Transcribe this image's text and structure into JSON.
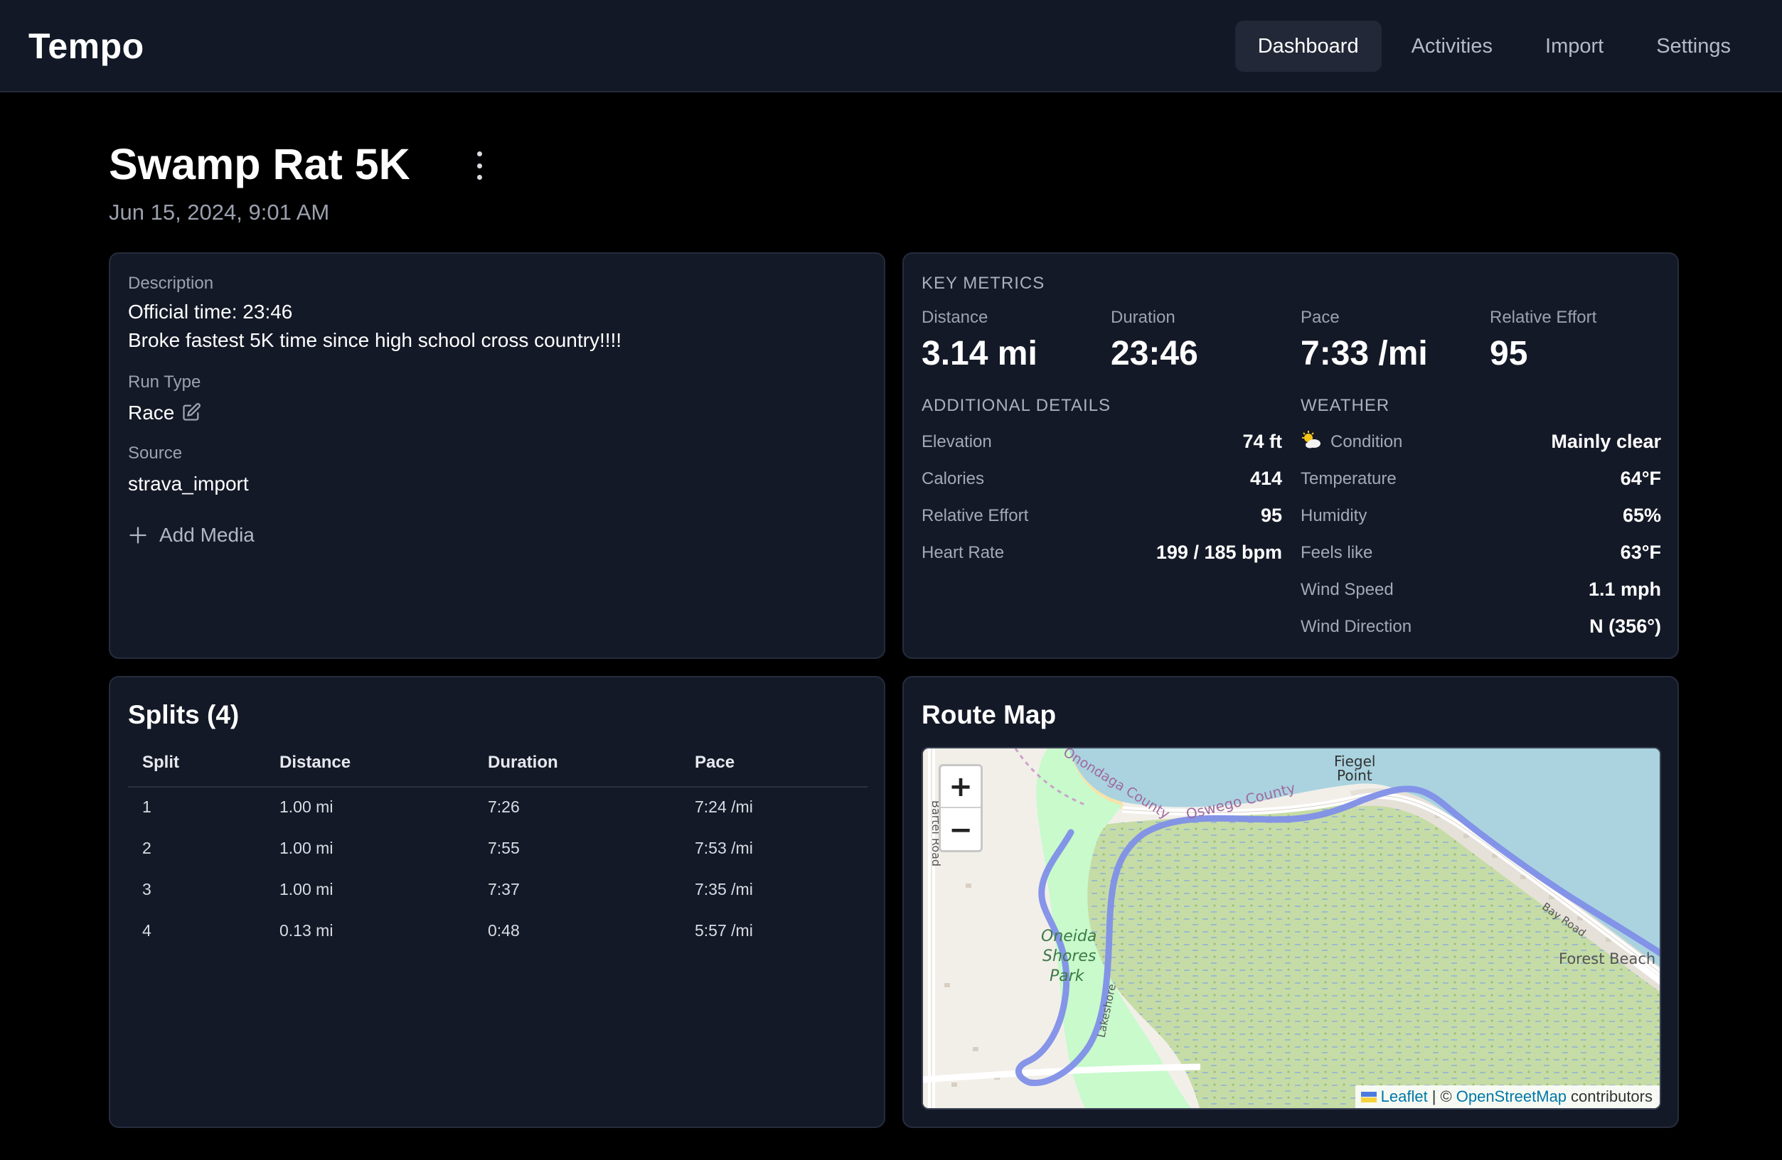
{
  "app": {
    "name": "Tempo"
  },
  "nav": {
    "items": [
      "Dashboard",
      "Activities",
      "Import",
      "Settings"
    ],
    "active": "Dashboard"
  },
  "activity": {
    "title": "Swamp Rat 5K",
    "datetime": "Jun 15, 2024, 9:01 AM"
  },
  "details": {
    "description_label": "Description",
    "description_lines": [
      "Official time: 23:46",
      "Broke fastest 5K time since high school cross country!!!!"
    ],
    "run_type_label": "Run Type",
    "run_type": "Race",
    "source_label": "Source",
    "source": "strava_import",
    "add_media_label": "Add Media"
  },
  "key_metrics": {
    "heading": "KEY METRICS",
    "items": [
      {
        "label": "Distance",
        "value": "3.14 mi"
      },
      {
        "label": "Duration",
        "value": "23:46"
      },
      {
        "label": "Pace",
        "value": "7:33 /mi"
      },
      {
        "label": "Relative Effort",
        "value": "95"
      }
    ]
  },
  "additional_details": {
    "heading": "ADDITIONAL DETAILS",
    "rows": [
      {
        "label": "Elevation",
        "value": "74 ft"
      },
      {
        "label": "Calories",
        "value": "414"
      },
      {
        "label": "Relative Effort",
        "value": "95"
      },
      {
        "label": "Heart Rate",
        "value": "199 / 185 bpm"
      }
    ]
  },
  "weather": {
    "heading": "WEATHER",
    "rows": [
      {
        "label": "Condition",
        "value": "Mainly clear",
        "icon": "partly-sunny-icon"
      },
      {
        "label": "Temperature",
        "value": "64°F"
      },
      {
        "label": "Humidity",
        "value": "65%"
      },
      {
        "label": "Feels like",
        "value": "63°F"
      },
      {
        "label": "Wind Speed",
        "value": "1.1 mph"
      },
      {
        "label": "Wind Direction",
        "value": "N (356°)"
      }
    ]
  },
  "splits": {
    "title": "Splits (4)",
    "columns": [
      "Split",
      "Distance",
      "Duration",
      "Pace"
    ],
    "rows": [
      [
        "1",
        "1.00 mi",
        "7:26",
        "7:24 /mi"
      ],
      [
        "2",
        "1.00 mi",
        "7:55",
        "7:53 /mi"
      ],
      [
        "3",
        "1.00 mi",
        "7:37",
        "7:35 /mi"
      ],
      [
        "4",
        "0.13 mi",
        "0:48",
        "5:57 /mi"
      ]
    ]
  },
  "route_map": {
    "title": "Route Map",
    "zoom_in": "+",
    "zoom_out": "−",
    "attribution": {
      "leaflet": "Leaflet",
      "separator": "| ©",
      "osm": "OpenStreetMap",
      "suffix": "contributors"
    },
    "labels": {
      "fiegel": "Fiegel",
      "point": "Point",
      "oswego": "Oswego County",
      "onondaga": "Onondaga County",
      "bartel": "Bartel Road",
      "oneida": "Oneida",
      "shores": "Shores",
      "park": "Park",
      "lakeshore": "Lakeshore",
      "bayroad": "Bay Road",
      "forest": "Forest Beach"
    },
    "colors": {
      "route": "#7f8fe8",
      "water": "#aad3df",
      "wetland": "#c5dfa6",
      "park": "#c8facc"
    }
  }
}
